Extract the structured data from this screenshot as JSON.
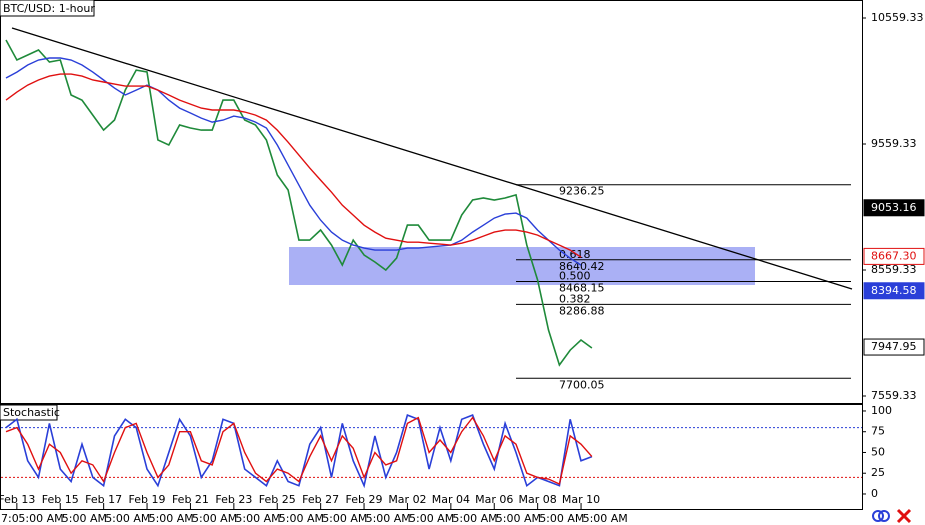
{
  "chart_data": [
    {
      "type": "line",
      "title": "BTC/USD: 1-hour",
      "categories": [
        null,
        "Feb 13",
        null,
        null,
        null,
        "Feb 15",
        null,
        null,
        null,
        "Feb 17",
        null,
        null,
        null,
        "Feb 19",
        null,
        null,
        null,
        "Feb 21",
        null,
        null,
        null,
        "Feb 23",
        null,
        null,
        null,
        "Feb 25",
        null,
        null,
        null,
        "Feb 27",
        null,
        null,
        null,
        "Feb 29",
        null,
        null,
        null,
        "Mar 02",
        null,
        null,
        null,
        "Mar 04",
        null,
        null,
        null,
        "Mar 06",
        null,
        null,
        null,
        "Mar 08",
        null,
        null,
        null,
        "Mar 10",
        null
      ],
      "time_labels": [
        "7:0",
        "5:00 AM",
        "5:00 AM",
        "5:00 AM",
        "5:00 AM",
        "5:00 AM",
        "5:00 AM",
        "5:00 AM",
        "5:00 AM",
        "5:00 AM",
        "5:00 AM",
        "5:00 AM",
        "5:00 AM",
        "5:00 AM",
        "5:00 AM"
      ],
      "series": [
        {
          "color": "#1f8a3a",
          "values": [
            10385,
            10226,
            10266,
            10305,
            10210,
            10226,
            9948,
            9908,
            9789,
            9670,
            9750,
            9988,
            10146,
            10131,
            9591,
            9551,
            9710,
            9686,
            9670,
            9670,
            9908,
            9908,
            9750,
            9710,
            9591,
            9313,
            9194,
            8797,
            8797,
            8877,
            8757,
            8599,
            8797,
            8678,
            8623,
            8559,
            8654,
            8916,
            8916,
            8797,
            8797,
            8797,
            8996,
            9115,
            9131,
            9115,
            9131,
            9155,
            8757,
            8480,
            8083,
            7805,
            7924,
            8004,
            7940
          ]
        },
        {
          "color": "#2a3fd8",
          "values": [
            10083,
            10130,
            10186,
            10226,
            10242,
            10242,
            10226,
            10186,
            10130,
            10067,
            10003,
            9948,
            9987,
            10027,
            9987,
            9908,
            9844,
            9805,
            9765,
            9733,
            9749,
            9781,
            9765,
            9733,
            9686,
            9551,
            9392,
            9233,
            9074,
            8955,
            8860,
            8796,
            8757,
            8733,
            8717,
            8717,
            8717,
            8733,
            8733,
            8741,
            8749,
            8757,
            8796,
            8860,
            8915,
            8971,
            9003,
            9011,
            8971,
            8876,
            8796,
            8717,
            8653,
            8598,
            null
          ]
        },
        {
          "color": "#e01010",
          "values": [
            9908,
            9971,
            10027,
            10067,
            10098,
            10114,
            10114,
            10098,
            10067,
            10051,
            10035,
            10019,
            10019,
            10019,
            9987,
            9948,
            9908,
            9876,
            9844,
            9829,
            9829,
            9829,
            9813,
            9789,
            9749,
            9670,
            9574,
            9471,
            9368,
            9273,
            9177,
            9074,
            8995,
            8915,
            8860,
            8812,
            8796,
            8780,
            8780,
            8772,
            8765,
            8757,
            8772,
            8796,
            8828,
            8860,
            8876,
            8876,
            8860,
            8836,
            8796,
            8757,
            8717,
            8661,
            null
          ]
        }
      ],
      "ylim": [
        7503.77,
        10702.19
      ],
      "yticks": [
        10559.33,
        9559.33,
        8559.33,
        7559.33
      ],
      "swing_high": 9236.25,
      "swing_low": 7700.05,
      "fib_levels": [
        {
          "ratio": "0.618",
          "price": 8640.42
        },
        {
          "ratio": "0.500",
          "price": 8468.15
        },
        {
          "ratio": "0.382",
          "price": 8286.88
        }
      ],
      "price_markers": [
        {
          "value": 9053.16,
          "bg": "#000000",
          "fg": "#ffffff"
        },
        {
          "value": 8667.3,
          "label": "8667.30",
          "bg": "#ffffff",
          "fg": "#e01010"
        },
        {
          "value": 8394.58,
          "bg": "#2a3fd8",
          "fg": "#ffffff"
        },
        {
          "value": 7947.95,
          "bg": "#ffffff",
          "fg": "#000000"
        }
      ]
    },
    {
      "type": "line",
      "title": "Stochastic",
      "series": [
        {
          "color": "#2a3fd8",
          "values": [
            80,
            90,
            40,
            20,
            85,
            30,
            15,
            60,
            20,
            10,
            70,
            90,
            80,
            30,
            10,
            50,
            90,
            70,
            20,
            40,
            90,
            85,
            30,
            20,
            10,
            40,
            15,
            10,
            60,
            80,
            20,
            85,
            40,
            10,
            70,
            20,
            50,
            95,
            90,
            30,
            80,
            40,
            90,
            95,
            60,
            30,
            85,
            50,
            10,
            20,
            15,
            10,
            90,
            40,
            45
          ]
        },
        {
          "color": "#e01010",
          "values": [
            75,
            80,
            60,
            30,
            60,
            50,
            25,
            40,
            35,
            15,
            50,
            80,
            85,
            50,
            20,
            35,
            75,
            75,
            40,
            35,
            75,
            85,
            50,
            25,
            15,
            30,
            25,
            15,
            45,
            70,
            40,
            70,
            55,
            20,
            50,
            35,
            40,
            85,
            92,
            50,
            65,
            50,
            75,
            92,
            70,
            40,
            70,
            60,
            25,
            20,
            18,
            12,
            70,
            60,
            45
          ]
        }
      ],
      "ylim": [
        -18.1,
        108.4
      ],
      "yticks": [
        100,
        75,
        50,
        25,
        0
      ],
      "levels": [
        {
          "value": 80,
          "color": "#2a3fd8"
        },
        {
          "value": 20,
          "color": "#e01010"
        }
      ]
    }
  ]
}
